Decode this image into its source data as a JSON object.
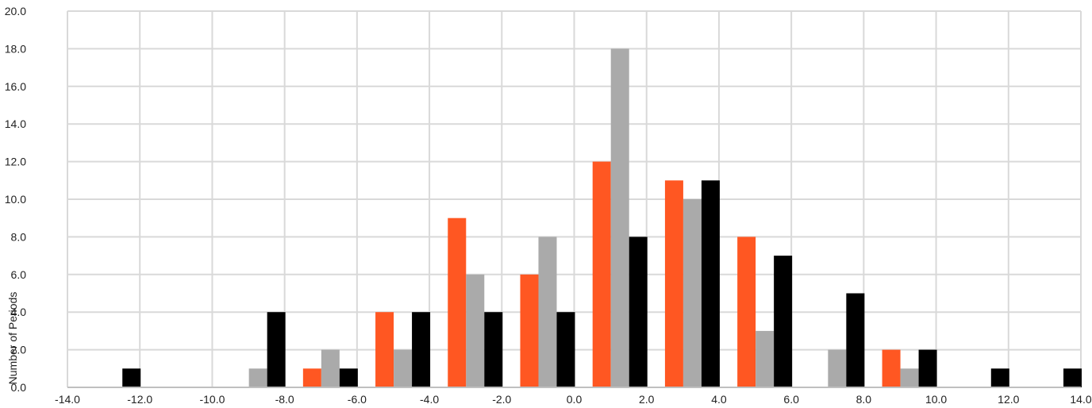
{
  "chart_data": {
    "type": "bar",
    "title": "",
    "xlabel": "",
    "ylabel": "Number of Periods",
    "xlim": [
      -14,
      14
    ],
    "ylim": [
      0,
      20
    ],
    "x_ticks": [
      "-14.0",
      "-12.0",
      "-10.0",
      "-8.0",
      "-6.0",
      "-4.0",
      "-2.0",
      "0.0",
      "2.0",
      "4.0",
      "6.0",
      "8.0",
      "10.0",
      "12.0",
      "14.0"
    ],
    "y_ticks": [
      "0.0",
      "2.0",
      "4.0",
      "6.0",
      "8.0",
      "10.0",
      "12.0",
      "14.0",
      "16.0",
      "18.0",
      "20.0"
    ],
    "grid": true,
    "legend": "none",
    "bins": [
      -12,
      -10,
      -8,
      -6,
      -4,
      -2,
      0,
      2,
      4,
      6,
      8,
      10,
      12,
      14
    ],
    "series": [
      {
        "color": "#ff5722",
        "values": [
          0,
          0,
          0,
          1,
          4,
          9,
          6,
          12,
          11,
          8,
          0,
          2,
          0,
          0
        ]
      },
      {
        "color": "#aaaaaa",
        "values": [
          0,
          0,
          1,
          2,
          2,
          6,
          8,
          18,
          10,
          3,
          2,
          1,
          0,
          0
        ]
      },
      {
        "color": "#000000",
        "values": [
          1,
          0,
          4,
          1,
          4,
          4,
          4,
          8,
          11,
          7,
          5,
          2,
          1,
          1
        ]
      }
    ]
  }
}
